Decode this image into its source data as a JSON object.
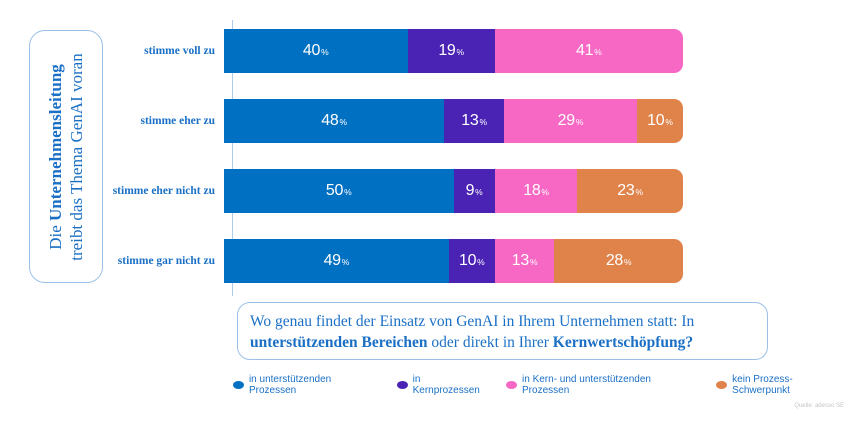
{
  "statement": {
    "line1_pre": "Die ",
    "line1_bold": "Unternehmensleitung",
    "line2": "treibt das Thema GenAI voran"
  },
  "question": {
    "line1": "Wo genau findet der Einsatz von GenAI in Ihrem Unternehmen statt: In",
    "bold1": "unterstützenden Bereichen",
    "mid": " oder direkt in Ihrer ",
    "bold2": "Kernwertschöpfung?"
  },
  "source": "Quelle: adesso SE",
  "colors": {
    "blue": "#0070C2",
    "purple": "#4A23B5",
    "pink": "#F668C4",
    "orange": "#E0834B",
    "text_blue": "#1b70c6",
    "border_blue": "#9cc1e8",
    "axis_blue": "#abcbec"
  },
  "chart_data": {
    "type": "bar",
    "orientation": "horizontal",
    "stacked": true,
    "categories": [
      "stimme voll zu",
      "stimme eher zu",
      "stimme eher nicht zu",
      "stimme gar nicht zu"
    ],
    "series": [
      {
        "name": "in unterstützenden Prozessen",
        "color": "#0070C2",
        "values": [
          40,
          48,
          50,
          49
        ]
      },
      {
        "name": "in Kernprozessen",
        "color": "#4A23B5",
        "values": [
          19,
          13,
          9,
          10
        ]
      },
      {
        "name": "in Kern- und unterstützenden Prozessen",
        "color": "#F668C4",
        "values": [
          41,
          29,
          18,
          13
        ]
      },
      {
        "name": "kein Prozess-Schwerpunkt",
        "color": "#E0834B",
        "values": [
          0,
          10,
          23,
          28
        ]
      }
    ],
    "value_suffix": "%",
    "xlim": [
      0,
      100
    ],
    "legend_position": "bottom",
    "grid": false
  }
}
